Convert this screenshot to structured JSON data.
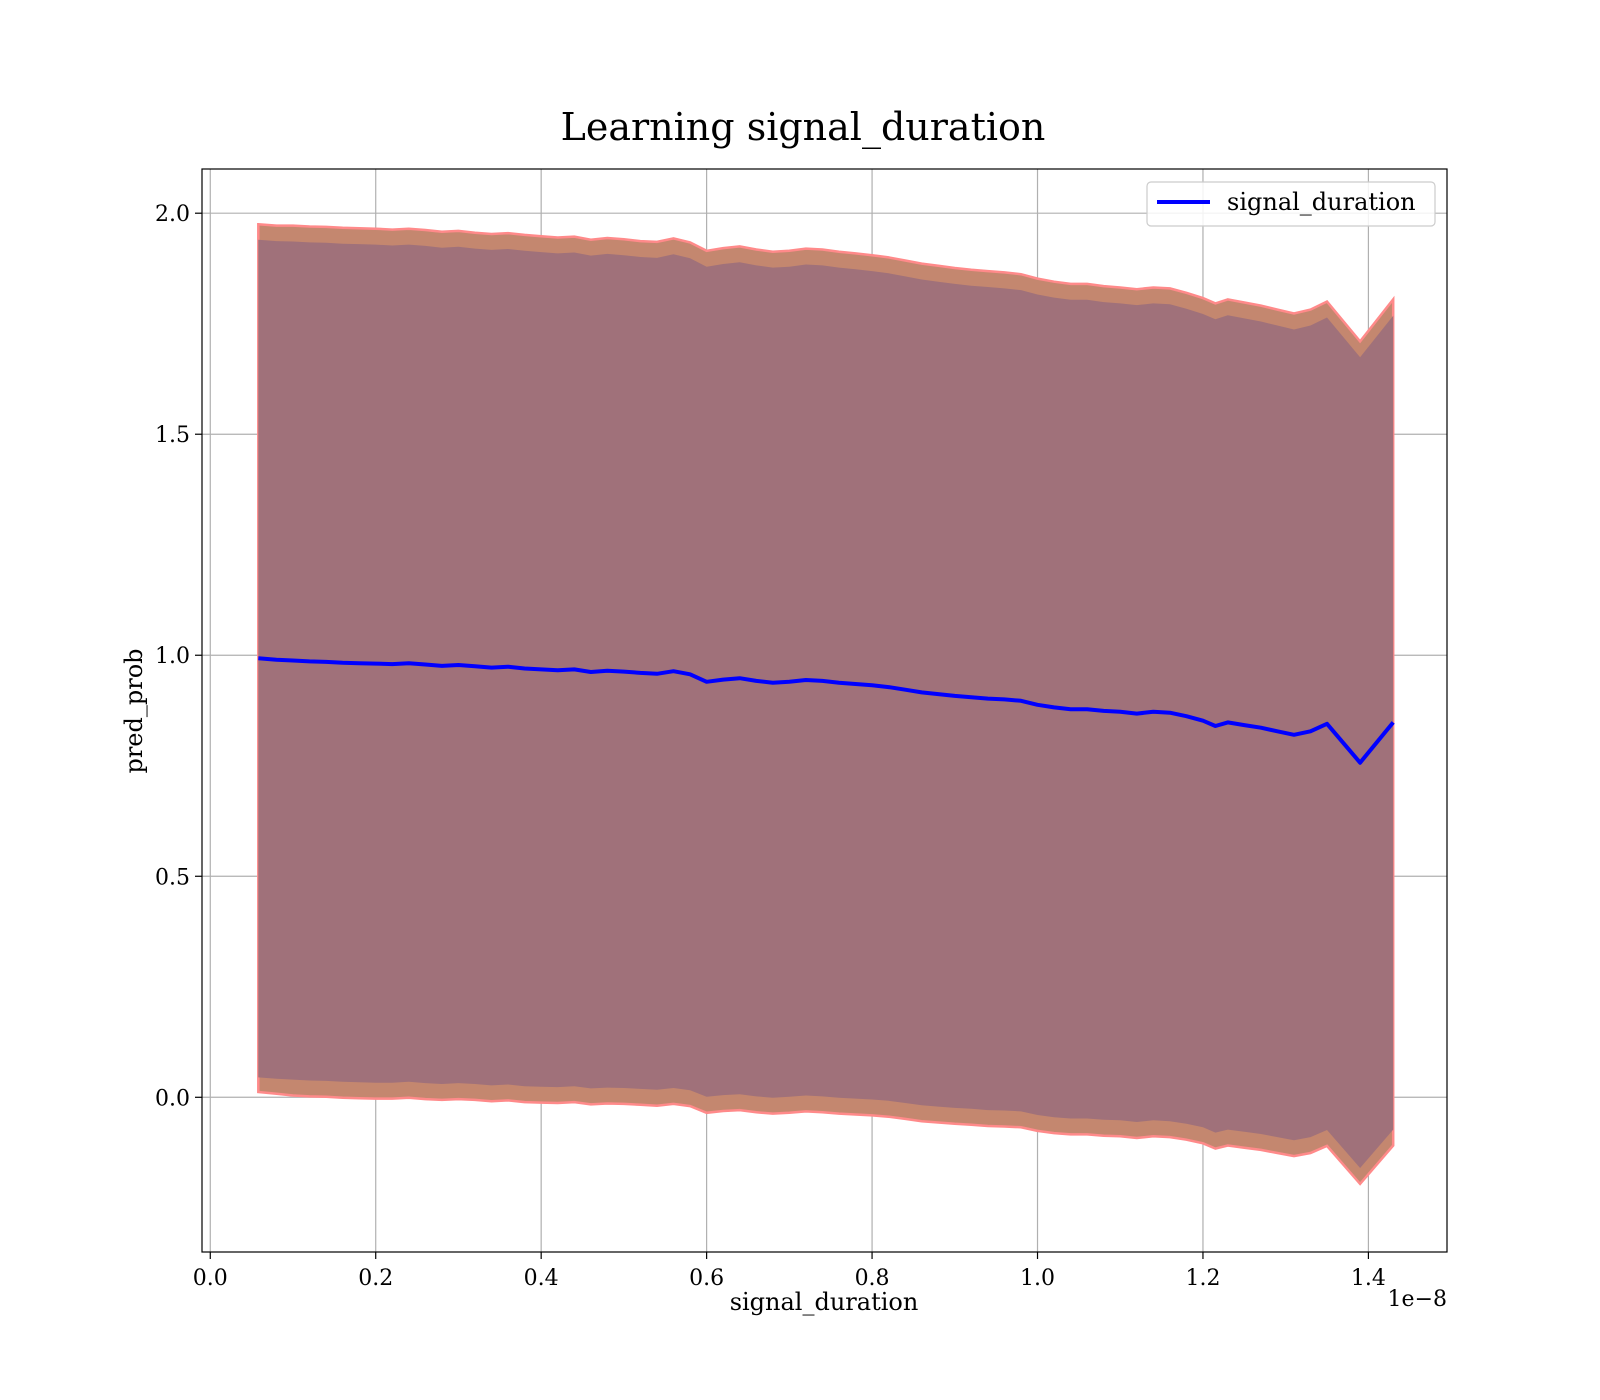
{
  "chart_data": {
    "type": "line",
    "title": "Learning signal_duration",
    "xlabel": "signal_duration",
    "ylabel": "pred_prob",
    "x_offset_text": "1e−8",
    "xlim": [
      -0.01,
      1.495
    ],
    "ylim": [
      -0.35,
      2.1
    ],
    "xticks": [
      0.0,
      0.2,
      0.4,
      0.6,
      0.8,
      1.0,
      1.2,
      1.4
    ],
    "xtick_labels": [
      "0.0",
      "0.2",
      "0.4",
      "0.6",
      "0.8",
      "1.0",
      "1.2",
      "1.4"
    ],
    "yticks": [
      0.0,
      0.5,
      1.0,
      1.5,
      2.0
    ],
    "ytick_labels": [
      "0.0",
      "0.5",
      "1.0",
      "1.5",
      "2.0"
    ],
    "grid": true,
    "legend": {
      "placement": "top-right",
      "entries": [
        "signal_duration"
      ]
    },
    "colors": {
      "line": "#0000ff",
      "band_inner": "#a0717a",
      "band_outer": "#c4876f",
      "band_edge": "#ff8a8a"
    },
    "series": [
      {
        "name": "signal_duration",
        "x": [
          0.058,
          0.08,
          0.1,
          0.12,
          0.14,
          0.16,
          0.18,
          0.2,
          0.22,
          0.24,
          0.26,
          0.28,
          0.3,
          0.32,
          0.34,
          0.36,
          0.38,
          0.4,
          0.42,
          0.44,
          0.46,
          0.48,
          0.5,
          0.52,
          0.54,
          0.56,
          0.58,
          0.6,
          0.62,
          0.64,
          0.66,
          0.68,
          0.7,
          0.72,
          0.74,
          0.76,
          0.78,
          0.8,
          0.82,
          0.84,
          0.86,
          0.88,
          0.9,
          0.92,
          0.94,
          0.96,
          0.98,
          1.0,
          1.02,
          1.04,
          1.06,
          1.08,
          1.1,
          1.12,
          1.14,
          1.16,
          1.18,
          1.2,
          1.215,
          1.23,
          1.25,
          1.27,
          1.29,
          1.31,
          1.33,
          1.35,
          1.39,
          1.43
        ],
        "y": [
          0.993,
          0.99,
          0.988,
          0.986,
          0.985,
          0.983,
          0.982,
          0.981,
          0.98,
          0.982,
          0.979,
          0.976,
          0.978,
          0.975,
          0.972,
          0.974,
          0.97,
          0.968,
          0.966,
          0.968,
          0.962,
          0.965,
          0.963,
          0.96,
          0.958,
          0.964,
          0.957,
          0.94,
          0.945,
          0.948,
          0.942,
          0.938,
          0.94,
          0.944,
          0.942,
          0.938,
          0.935,
          0.932,
          0.928,
          0.922,
          0.916,
          0.912,
          0.908,
          0.905,
          0.902,
          0.9,
          0.897,
          0.888,
          0.882,
          0.878,
          0.878,
          0.874,
          0.872,
          0.868,
          0.872,
          0.87,
          0.862,
          0.852,
          0.84,
          0.848,
          0.842,
          0.836,
          0.828,
          0.82,
          0.828,
          0.845,
          0.757,
          0.848
        ],
        "band_outer_upper": [
          1.975,
          1.972,
          1.972,
          1.97,
          1.969,
          1.967,
          1.966,
          1.965,
          1.963,
          1.965,
          1.962,
          1.958,
          1.96,
          1.956,
          1.953,
          1.955,
          1.951,
          1.948,
          1.945,
          1.947,
          1.94,
          1.944,
          1.941,
          1.937,
          1.935,
          1.943,
          1.934,
          1.915,
          1.921,
          1.925,
          1.918,
          1.913,
          1.915,
          1.92,
          1.918,
          1.913,
          1.909,
          1.905,
          1.9,
          1.893,
          1.886,
          1.881,
          1.876,
          1.872,
          1.869,
          1.866,
          1.862,
          1.852,
          1.845,
          1.84,
          1.84,
          1.835,
          1.832,
          1.828,
          1.832,
          1.83,
          1.82,
          1.808,
          1.796,
          1.805,
          1.798,
          1.791,
          1.782,
          1.773,
          1.782,
          1.8,
          1.71,
          1.805
        ],
        "band_outer_lower": [
          0.012,
          0.008,
          0.004,
          0.002,
          0.001,
          -0.001,
          -0.002,
          -0.003,
          -0.003,
          -0.001,
          -0.004,
          -0.006,
          -0.004,
          -0.006,
          -0.009,
          -0.007,
          -0.011,
          -0.012,
          -0.013,
          -0.011,
          -0.016,
          -0.014,
          -0.015,
          -0.017,
          -0.019,
          -0.015,
          -0.02,
          -0.035,
          -0.031,
          -0.029,
          -0.034,
          -0.037,
          -0.035,
          -0.032,
          -0.034,
          -0.037,
          -0.039,
          -0.041,
          -0.044,
          -0.049,
          -0.054,
          -0.057,
          -0.06,
          -0.062,
          -0.065,
          -0.066,
          -0.068,
          -0.076,
          -0.081,
          -0.084,
          -0.084,
          -0.087,
          -0.088,
          -0.092,
          -0.088,
          -0.09,
          -0.096,
          -0.104,
          -0.116,
          -0.109,
          -0.114,
          -0.119,
          -0.126,
          -0.133,
          -0.126,
          -0.11,
          -0.196,
          -0.109
        ],
        "band_inner_upper": [
          1.94,
          1.937,
          1.936,
          1.934,
          1.933,
          1.931,
          1.93,
          1.929,
          1.927,
          1.929,
          1.926,
          1.922,
          1.924,
          1.92,
          1.917,
          1.919,
          1.915,
          1.912,
          1.909,
          1.911,
          1.904,
          1.908,
          1.905,
          1.901,
          1.899,
          1.907,
          1.898,
          1.879,
          1.885,
          1.889,
          1.882,
          1.877,
          1.879,
          1.884,
          1.882,
          1.877,
          1.873,
          1.869,
          1.864,
          1.857,
          1.85,
          1.845,
          1.84,
          1.836,
          1.833,
          1.83,
          1.826,
          1.816,
          1.809,
          1.804,
          1.804,
          1.799,
          1.796,
          1.792,
          1.796,
          1.794,
          1.784,
          1.772,
          1.76,
          1.769,
          1.762,
          1.755,
          1.746,
          1.737,
          1.746,
          1.764,
          1.674,
          1.768
        ],
        "band_inner_lower": [
          0.045,
          0.042,
          0.04,
          0.038,
          0.037,
          0.035,
          0.034,
          0.033,
          0.033,
          0.035,
          0.032,
          0.03,
          0.032,
          0.03,
          0.027,
          0.029,
          0.025,
          0.024,
          0.023,
          0.025,
          0.02,
          0.022,
          0.021,
          0.019,
          0.017,
          0.021,
          0.016,
          0.001,
          0.005,
          0.007,
          0.002,
          -0.001,
          0.001,
          0.004,
          0.002,
          -0.001,
          -0.003,
          -0.005,
          -0.008,
          -0.013,
          -0.018,
          -0.021,
          -0.024,
          -0.026,
          -0.029,
          -0.03,
          -0.032,
          -0.04,
          -0.045,
          -0.048,
          -0.048,
          -0.051,
          -0.052,
          -0.056,
          -0.052,
          -0.054,
          -0.06,
          -0.068,
          -0.08,
          -0.073,
          -0.078,
          -0.083,
          -0.09,
          -0.097,
          -0.09,
          -0.074,
          -0.16,
          -0.073
        ]
      }
    ]
  }
}
